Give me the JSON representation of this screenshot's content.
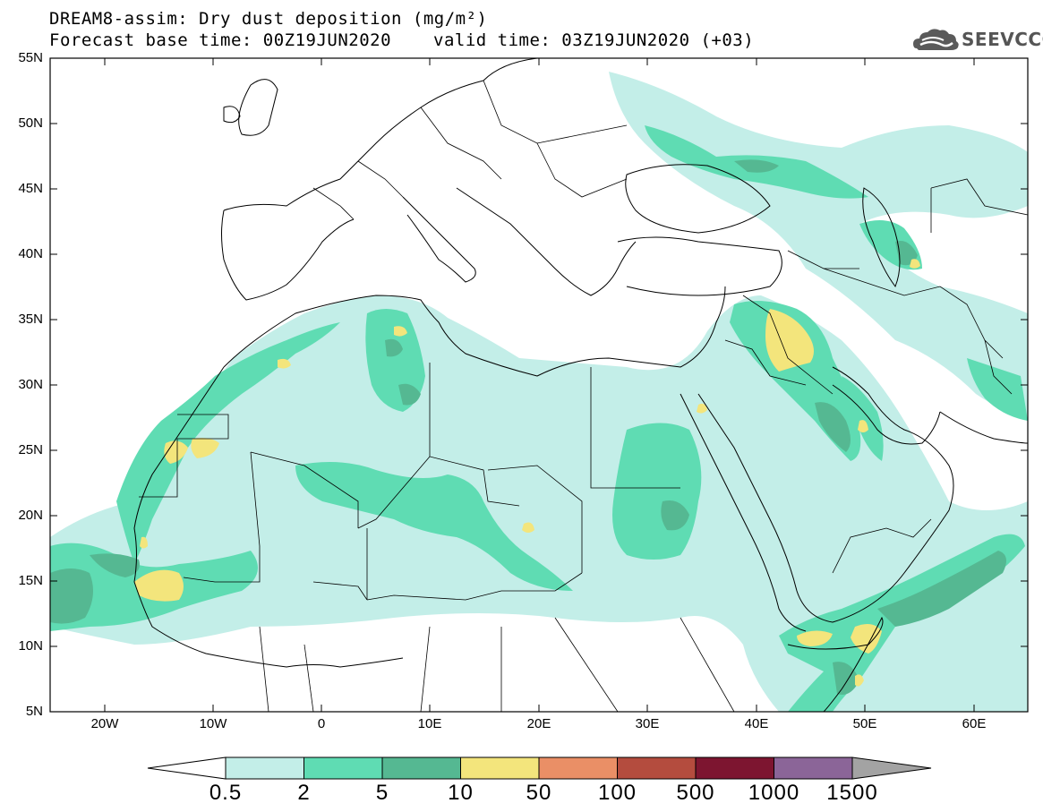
{
  "title": {
    "line1": "DREAM8-assim: Dry dust deposition (mg/m²)",
    "line2_left": "Forecast base time: 00Z19JUN2020",
    "line2_right": "valid time: 03Z19JUN2020 (+03)"
  },
  "logo": {
    "text": "SEEVCCC",
    "icon": "cloud-icon"
  },
  "axes": {
    "lat_labels": [
      "55N",
      "50N",
      "45N",
      "40N",
      "35N",
      "30N",
      "25N",
      "20N",
      "15N",
      "10N",
      "5N"
    ],
    "lon_labels": [
      "20W",
      "10W",
      "0",
      "10E",
      "20E",
      "30E",
      "40E",
      "50E",
      "60E"
    ]
  },
  "colorbar": {
    "labels": [
      "0.5",
      "2",
      "5",
      "10",
      "50",
      "100",
      "500",
      "1000",
      "1500"
    ],
    "colors": [
      "#c3eee8",
      "#5fdcb3",
      "#55b892",
      "#f3e57c",
      "#ea8f66",
      "#b44c3e",
      "#7d1530",
      "#8b6598"
    ],
    "under_color": "#ffffff",
    "over_color": "#a3a3a3"
  },
  "map_colors": {
    "level1": "#c3eee8",
    "level2": "#5fdcb3",
    "level3": "#55b892",
    "level4": "#f3e57c"
  }
}
